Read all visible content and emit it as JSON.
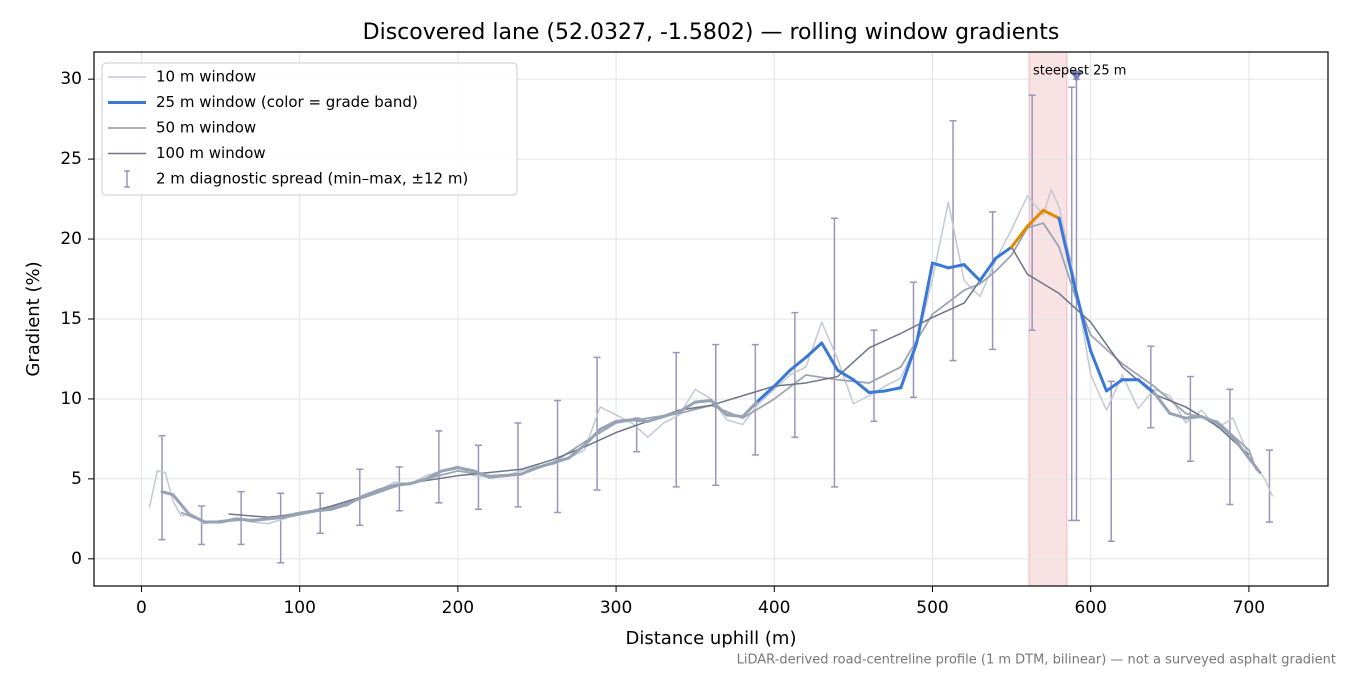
{
  "chart_data": {
    "type": "line",
    "title": "Discovered lane (52.0327, -1.5802) — rolling window gradients",
    "xlabel": "Distance uphill (m)",
    "ylabel": "Gradient (%)",
    "footnote": "LiDAR-derived road-centreline profile (1 m DTM, bilinear) — not a surveyed asphalt gradient",
    "xlim": [
      -30,
      750
    ],
    "ylim": [
      -1.7,
      31.7
    ],
    "xticks": [
      0,
      100,
      200,
      300,
      400,
      500,
      600,
      700
    ],
    "yticks": [
      0,
      5,
      10,
      15,
      20,
      25,
      30
    ],
    "grid": true,
    "legend": "upper left",
    "series": [
      {
        "name": "10 m window",
        "color": "#c3c9d4",
        "width": 1.5,
        "x": [
          5,
          10,
          15,
          20,
          25,
          30,
          40,
          50,
          60,
          70,
          80,
          90,
          100,
          110,
          120,
          130,
          140,
          150,
          160,
          170,
          180,
          190,
          200,
          210,
          220,
          230,
          240,
          250,
          260,
          270,
          280,
          290,
          300,
          310,
          320,
          330,
          340,
          350,
          360,
          370,
          380,
          390,
          400,
          410,
          420,
          430,
          440,
          450,
          460,
          470,
          480,
          490,
          500,
          510,
          520,
          530,
          540,
          550,
          560,
          570,
          575,
          580,
          590,
          600,
          610,
          620,
          630,
          640,
          650,
          660,
          670,
          680,
          690,
          700,
          710,
          715
        ],
        "values": [
          3.2,
          5.5,
          5.4,
          3.6,
          2.7,
          2.8,
          2.2,
          2.4,
          2.5,
          2.3,
          2.2,
          2.5,
          2.9,
          3.0,
          3.2,
          3.3,
          4.0,
          4.3,
          4.8,
          4.7,
          5.2,
          5.5,
          5.8,
          5.2,
          5.1,
          5.2,
          5.5,
          5.8,
          5.9,
          6.3,
          6.8,
          9.5,
          9.0,
          8.5,
          7.6,
          8.5,
          9.0,
          10.6,
          10.0,
          8.7,
          8.4,
          9.7,
          10.6,
          11.5,
          12.0,
          14.8,
          12.5,
          9.7,
          10.2,
          10.8,
          11.3,
          13.5,
          17.5,
          22.3,
          17.4,
          16.4,
          18.7,
          20.6,
          22.7,
          21.5,
          23.1,
          22.0,
          17.4,
          11.5,
          9.3,
          11.5,
          9.4,
          10.6,
          10.2,
          8.5,
          9.3,
          8.2,
          8.8,
          6.4,
          5.0,
          3.9
        ]
      },
      {
        "name": "50 m window",
        "color": "#9da5b3",
        "width": 1.8,
        "x": [
          25,
          40,
          60,
          80,
          100,
          120,
          140,
          160,
          180,
          200,
          220,
          240,
          260,
          280,
          300,
          320,
          340,
          360,
          380,
          400,
          420,
          440,
          460,
          480,
          500,
          520,
          530,
          540,
          550,
          560,
          570,
          580,
          590,
          600,
          620,
          640,
          660,
          680,
          700,
          705
        ],
        "values": [
          2.9,
          2.3,
          2.4,
          2.5,
          2.9,
          3.2,
          3.8,
          4.5,
          5.0,
          5.5,
          5.2,
          5.3,
          6.0,
          7.3,
          8.5,
          8.8,
          9.1,
          9.6,
          8.8,
          10.0,
          11.5,
          11.2,
          11.0,
          12.0,
          15.3,
          16.8,
          17.2,
          18.0,
          19.0,
          20.7,
          21.0,
          19.5,
          16.5,
          14.0,
          12.2,
          10.8,
          9.1,
          8.6,
          6.8,
          5.5
        ]
      },
      {
        "name": "100 m window",
        "color": "#6e7485",
        "width": 1.5,
        "x": [
          55,
          80,
          100,
          120,
          140,
          160,
          180,
          200,
          220,
          240,
          260,
          280,
          300,
          320,
          340,
          360,
          380,
          400,
          420,
          440,
          460,
          480,
          500,
          520,
          540,
          550,
          560,
          580,
          600,
          620,
          640,
          660,
          680,
          700
        ],
        "values": [
          2.8,
          2.6,
          2.8,
          3.3,
          3.9,
          4.6,
          4.9,
          5.2,
          5.4,
          5.6,
          6.2,
          7.0,
          7.9,
          8.6,
          9.3,
          9.6,
          10.2,
          10.8,
          11.0,
          11.4,
          13.2,
          14.1,
          15.1,
          16.0,
          18.8,
          19.5,
          17.8,
          16.6,
          14.8,
          12.0,
          10.3,
          9.5,
          8.3,
          6.5
        ]
      },
      {
        "name": "25 m window (color = grade band)",
        "color": "#3a78d8",
        "width": 3,
        "band_thresholds": [
          10,
          20
        ],
        "band_colors": [
          "#97a2b4",
          "#3a78d8",
          "#e08a00"
        ],
        "x": [
          13,
          20,
          30,
          40,
          50,
          60,
          70,
          80,
          90,
          100,
          110,
          120,
          130,
          140,
          150,
          160,
          170,
          180,
          190,
          200,
          210,
          220,
          230,
          240,
          250,
          260,
          270,
          280,
          290,
          300,
          310,
          320,
          330,
          340,
          350,
          360,
          370,
          380,
          390,
          400,
          410,
          420,
          430,
          440,
          450,
          460,
          470,
          480,
          490,
          500,
          510,
          520,
          530,
          540,
          550,
          560,
          570,
          580,
          590,
          600,
          610,
          620,
          630,
          640,
          650,
          660,
          670,
          680,
          690,
          700,
          707
        ],
        "values": [
          4.2,
          4.0,
          2.8,
          2.3,
          2.3,
          2.5,
          2.4,
          2.5,
          2.6,
          2.8,
          3.0,
          3.1,
          3.4,
          3.9,
          4.3,
          4.6,
          4.7,
          5.0,
          5.5,
          5.7,
          5.5,
          5.1,
          5.2,
          5.3,
          5.7,
          6.0,
          6.3,
          7.1,
          8.1,
          8.6,
          8.7,
          8.6,
          8.9,
          9.2,
          9.8,
          9.9,
          9.0,
          8.9,
          9.9,
          10.8,
          11.8,
          12.6,
          13.5,
          11.8,
          11.2,
          10.4,
          10.5,
          10.7,
          13.5,
          18.5,
          18.2,
          18.4,
          17.4,
          18.8,
          19.5,
          20.8,
          21.8,
          21.3,
          17.0,
          13.0,
          10.5,
          11.2,
          11.2,
          10.4,
          9.1,
          8.8,
          8.9,
          8.5,
          7.6,
          6.3,
          5.4
        ]
      }
    ],
    "error_bars": {
      "name": "2 m diagnostic spread (min–max, ±12 m)",
      "color": "#9b95bb",
      "x": [
        13,
        38,
        63,
        88,
        113,
        138,
        163,
        188,
        213,
        238,
        263,
        288,
        313,
        338,
        363,
        388,
        413,
        438,
        463,
        488,
        513,
        538,
        563,
        588,
        591,
        613,
        638,
        663,
        688,
        713
      ],
      "low": [
        1.2,
        0.9,
        0.9,
        -0.25,
        1.6,
        2.1,
        3.0,
        3.5,
        3.1,
        3.25,
        2.9,
        4.3,
        6.7,
        4.5,
        4.6,
        6.5,
        7.6,
        4.5,
        8.6,
        10.1,
        12.4,
        13.1,
        14.3,
        2.4,
        2.4,
        1.1,
        8.2,
        6.1,
        3.4,
        2.3
      ],
      "high": [
        7.7,
        3.3,
        4.2,
        4.1,
        4.1,
        5.6,
        5.75,
        8.0,
        7.1,
        8.5,
        9.9,
        12.6,
        8.8,
        12.9,
        13.4,
        13.4,
        15.4,
        21.3,
        14.3,
        17.3,
        27.4,
        21.7,
        29.0,
        29.5,
        30.0,
        11.1,
        13.3,
        11.4,
        10.6,
        6.8
      ]
    },
    "highlight": {
      "label": "steepest 25 m",
      "color": "#c8202e",
      "span": [
        561,
        585
      ],
      "x": 591,
      "y": 30.2
    }
  }
}
